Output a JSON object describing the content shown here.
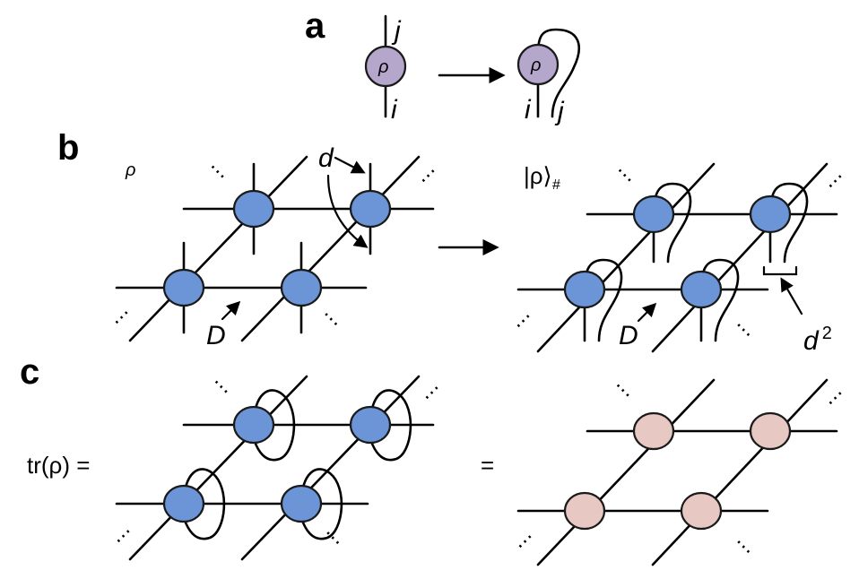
{
  "panels": {
    "a": "a",
    "b": "b",
    "c": "c"
  },
  "labels": {
    "rho": "ρ",
    "i": "i",
    "j": "j",
    "d": "d",
    "D": "D",
    "d2_base": "d",
    "d2_exp": "2",
    "ket_rho": "|ρ⟩",
    "ket_sub": "#",
    "tr_rho": "tr(ρ) =",
    "equals": "=",
    "dots": "⋯"
  },
  "colors": {
    "tensor_blue": "#6b95d6",
    "tensor_purple": "#b5a6cc",
    "tensor_pink": "#e8c8c2"
  }
}
